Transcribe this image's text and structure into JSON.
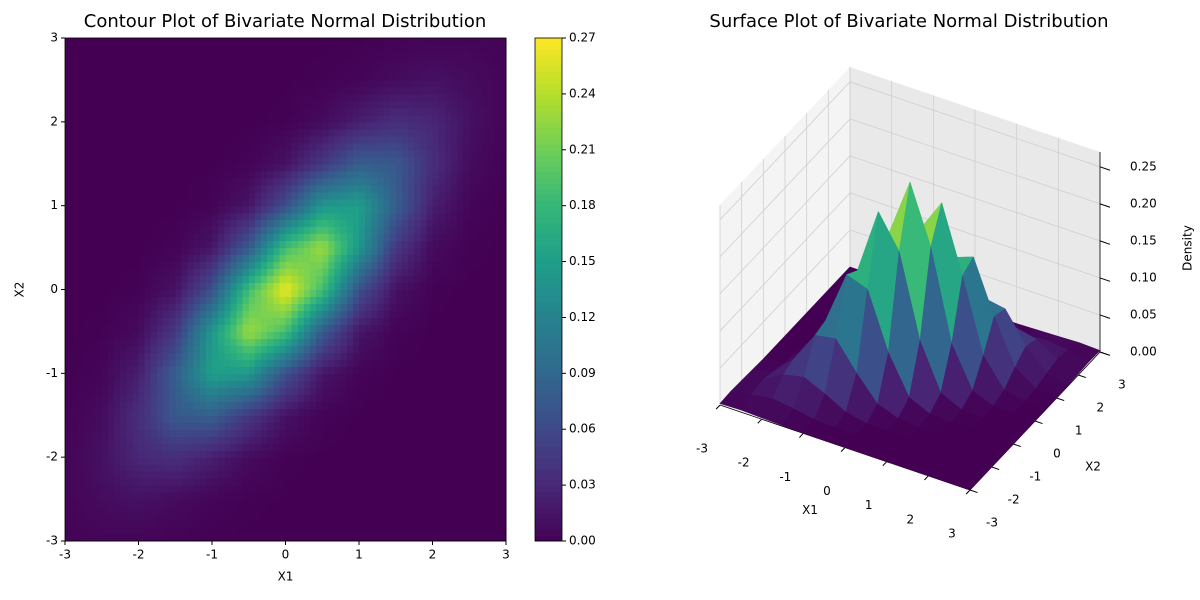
{
  "chart_data": [
    {
      "type": "contour",
      "title": "Contour Plot of Bivariate Normal Distribution",
      "xlabel": "X1",
      "ylabel": "X2",
      "x": [
        -3,
        -2.5,
        -2,
        -1.5,
        -1,
        -0.5,
        0,
        0.5,
        1,
        1.5,
        2,
        2.5,
        3
      ],
      "y": [
        -3,
        -2.5,
        -2,
        -1.5,
        -1,
        -0.5,
        0,
        0.5,
        1,
        1.5,
        2,
        2.5,
        3
      ],
      "z": [
        [
          0.002,
          0.003,
          0.002,
          0.001,
          0,
          0,
          0,
          0,
          0,
          0,
          0,
          0,
          0
        ],
        [
          0.003,
          0.008,
          0.012,
          0.008,
          0.003,
          0.001,
          0,
          0,
          0,
          0,
          0,
          0,
          0
        ],
        [
          0.002,
          0.012,
          0.029,
          0.035,
          0.022,
          0.007,
          0.001,
          0,
          0,
          0,
          0,
          0,
          0
        ],
        [
          0.001,
          0.008,
          0.035,
          0.076,
          0.081,
          0.044,
          0.012,
          0.002,
          0,
          0,
          0,
          0,
          0
        ],
        [
          0,
          0.003,
          0.022,
          0.081,
          0.152,
          0.142,
          0.066,
          0.015,
          0.002,
          0,
          0,
          0,
          0
        ],
        [
          0,
          0.001,
          0.007,
          0.044,
          0.142,
          0.231,
          0.187,
          0.076,
          0.015,
          0.002,
          0,
          0,
          0
        ],
        [
          0,
          0,
          0.001,
          0.012,
          0.066,
          0.187,
          0.265,
          0.187,
          0.066,
          0.012,
          0.001,
          0,
          0
        ],
        [
          0,
          0,
          0,
          0.002,
          0.015,
          0.076,
          0.187,
          0.231,
          0.142,
          0.044,
          0.007,
          0.001,
          0
        ],
        [
          0,
          0,
          0,
          0,
          0.002,
          0.015,
          0.066,
          0.142,
          0.152,
          0.081,
          0.022,
          0.003,
          0
        ],
        [
          0,
          0,
          0,
          0,
          0,
          0.002,
          0.012,
          0.044,
          0.081,
          0.076,
          0.035,
          0.008,
          0.001
        ],
        [
          0,
          0,
          0,
          0,
          0,
          0,
          0.001,
          0.007,
          0.022,
          0.035,
          0.029,
          0.012,
          0.002
        ],
        [
          0,
          0,
          0,
          0,
          0,
          0,
          0,
          0.001,
          0.003,
          0.008,
          0.012,
          0.008,
          0.003
        ],
        [
          0,
          0,
          0,
          0,
          0,
          0,
          0,
          0,
          0,
          0.001,
          0.002,
          0.003,
          0.002
        ]
      ],
      "xlim": [
        -3,
        3
      ],
      "ylim": [
        -3,
        3
      ],
      "xticks": [
        -3,
        -2,
        -1,
        0,
        1,
        2,
        3
      ],
      "yticks": [
        -3,
        -2,
        -1,
        0,
        1,
        2,
        3
      ],
      "colormap": "viridis",
      "colorbar": {
        "lim": [
          0,
          0.27
        ],
        "ticks": [
          {
            "value": 0,
            "label": "0.00"
          },
          {
            "value": 0.03,
            "label": "0.03"
          },
          {
            "value": 0.06,
            "label": "0.06"
          },
          {
            "value": 0.09,
            "label": "0.09"
          },
          {
            "value": 0.12,
            "label": "0.12"
          },
          {
            "value": 0.15,
            "label": "0.15"
          },
          {
            "value": 0.18,
            "label": "0.18"
          },
          {
            "value": 0.21,
            "label": "0.21"
          },
          {
            "value": 0.24,
            "label": "0.24"
          },
          {
            "value": 0.27,
            "label": "0.27"
          }
        ]
      }
    },
    {
      "type": "surface",
      "title": "Surface Plot of Bivariate Normal Distribution",
      "xlabel": "X1",
      "ylabel": "X2",
      "zlabel": "Density",
      "x": [
        -3,
        -2.5,
        -2,
        -1.5,
        -1,
        -0.5,
        0,
        0.5,
        1,
        1.5,
        2,
        2.5,
        3
      ],
      "y": [
        -3,
        -2.5,
        -2,
        -1.5,
        -1,
        -0.5,
        0,
        0.5,
        1,
        1.5,
        2,
        2.5,
        3
      ],
      "z": [
        [
          0.002,
          0.003,
          0.002,
          0.001,
          0,
          0,
          0,
          0,
          0,
          0,
          0,
          0,
          0
        ],
        [
          0.003,
          0.008,
          0.012,
          0.008,
          0.003,
          0.001,
          0,
          0,
          0,
          0,
          0,
          0,
          0
        ],
        [
          0.002,
          0.012,
          0.029,
          0.035,
          0.022,
          0.007,
          0.001,
          0,
          0,
          0,
          0,
          0,
          0
        ],
        [
          0.001,
          0.008,
          0.035,
          0.076,
          0.081,
          0.044,
          0.012,
          0.002,
          0,
          0,
          0,
          0,
          0
        ],
        [
          0,
          0.003,
          0.022,
          0.081,
          0.152,
          0.142,
          0.066,
          0.015,
          0.002,
          0,
          0,
          0,
          0
        ],
        [
          0,
          0.001,
          0.007,
          0.044,
          0.142,
          0.231,
          0.187,
          0.076,
          0.015,
          0.002,
          0,
          0,
          0
        ],
        [
          0,
          0,
          0.001,
          0.012,
          0.066,
          0.187,
          0.265,
          0.187,
          0.066,
          0.012,
          0.001,
          0,
          0
        ],
        [
          0,
          0,
          0,
          0.002,
          0.015,
          0.076,
          0.187,
          0.231,
          0.142,
          0.044,
          0.007,
          0.001,
          0
        ],
        [
          0,
          0,
          0,
          0,
          0.002,
          0.015,
          0.066,
          0.142,
          0.152,
          0.081,
          0.022,
          0.003,
          0
        ],
        [
          0,
          0,
          0,
          0,
          0,
          0.002,
          0.012,
          0.044,
          0.081,
          0.076,
          0.035,
          0.008,
          0.001
        ],
        [
          0,
          0,
          0,
          0,
          0,
          0,
          0.001,
          0.007,
          0.022,
          0.035,
          0.029,
          0.012,
          0.002
        ],
        [
          0,
          0,
          0,
          0,
          0,
          0,
          0,
          0.001,
          0.003,
          0.008,
          0.012,
          0.008,
          0.003
        ],
        [
          0,
          0,
          0,
          0,
          0,
          0,
          0,
          0,
          0,
          0.001,
          0.002,
          0.003,
          0.002
        ]
      ],
      "xlim": [
        -3,
        3
      ],
      "ylim": [
        -3,
        3
      ],
      "zlim": [
        0,
        0.27
      ],
      "xticks": [
        -3,
        -2,
        -1,
        0,
        1,
        2,
        3
      ],
      "yticks": [
        -3,
        -2,
        -1,
        0,
        1,
        2,
        3
      ],
      "zticks": [
        {
          "value": 0,
          "label": "0.00"
        },
        {
          "value": 0.05,
          "label": "0.05"
        },
        {
          "value": 0.1,
          "label": "0.10"
        },
        {
          "value": 0.15,
          "label": "0.15"
        },
        {
          "value": 0.2,
          "label": "0.20"
        },
        {
          "value": 0.25,
          "label": "0.25"
        }
      ],
      "colormap": "viridis"
    }
  ]
}
